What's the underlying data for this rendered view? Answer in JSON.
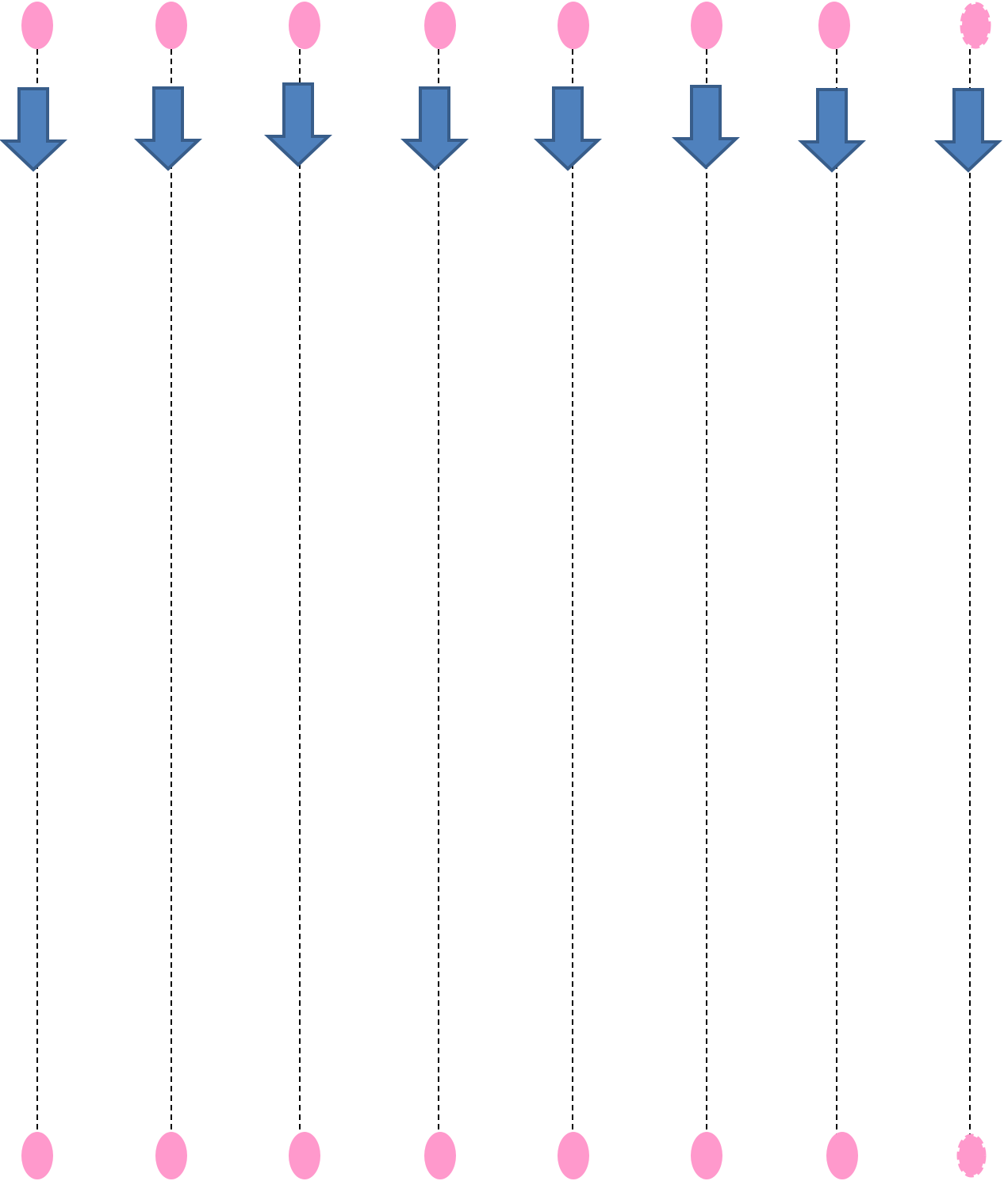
{
  "diagram": {
    "colors": {
      "background": "#ffffff",
      "node_fill": "#ff99cc",
      "arrow_fill": "#4f81bd",
      "arrow_stroke": "#385d8a",
      "line_stroke": "#000000"
    },
    "columns": [
      {
        "name": "column-1",
        "top_node_style": "solid",
        "bottom_node_style": "solid"
      },
      {
        "name": "column-2",
        "top_node_style": "solid",
        "bottom_node_style": "solid"
      },
      {
        "name": "column-3",
        "top_node_style": "solid",
        "bottom_node_style": "solid"
      },
      {
        "name": "column-4",
        "top_node_style": "solid",
        "bottom_node_style": "solid"
      },
      {
        "name": "column-5",
        "top_node_style": "solid",
        "bottom_node_style": "solid"
      },
      {
        "name": "column-6",
        "top_node_style": "solid",
        "bottom_node_style": "solid"
      },
      {
        "name": "column-7",
        "top_node_style": "solid",
        "bottom_node_style": "solid"
      },
      {
        "name": "column-8",
        "top_node_style": "dashed",
        "bottom_node_style": "dashed"
      }
    ],
    "arrow_direction": "down",
    "line_style": "dashed"
  }
}
